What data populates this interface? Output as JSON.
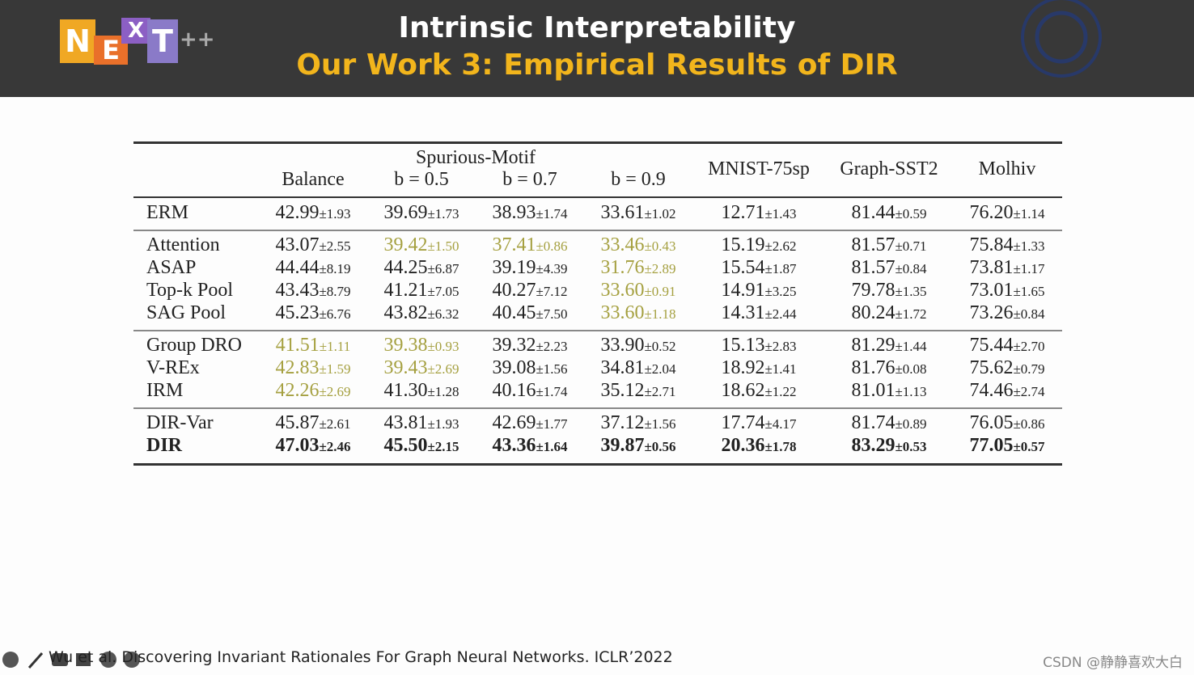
{
  "header": {
    "logo": [
      "N",
      "E",
      "X",
      "T",
      "++"
    ],
    "title": "Intrinsic Interpretability",
    "subtitle": "Our Work 3: Empirical Results of DIR"
  },
  "table": {
    "group_header": "Spurious-Motif",
    "columns": [
      "Balance",
      "b = 0.5",
      "b = 0.7",
      "b = 0.9",
      "MNIST-75sp",
      "Graph-SST2",
      "Molhiv"
    ],
    "sections": [
      [
        {
          "method": "ERM",
          "cells": [
            {
              "mean": "42.99",
              "std": "±1.93"
            },
            {
              "mean": "39.69",
              "std": "±1.73"
            },
            {
              "mean": "38.93",
              "std": "±1.74"
            },
            {
              "mean": "33.61",
              "std": "±1.02"
            },
            {
              "mean": "12.71",
              "std": "±1.43"
            },
            {
              "mean": "81.44",
              "std": "±0.59"
            },
            {
              "mean": "76.20",
              "std": "±1.14"
            }
          ]
        }
      ],
      [
        {
          "method": "Attention",
          "cells": [
            {
              "mean": "43.07",
              "std": "±2.55"
            },
            {
              "mean": "39.42",
              "std": "±1.50",
              "highlight": true
            },
            {
              "mean": "37.41",
              "std": "±0.86",
              "highlight": true
            },
            {
              "mean": "33.46",
              "std": "±0.43",
              "highlight": true
            },
            {
              "mean": "15.19",
              "std": "±2.62"
            },
            {
              "mean": "81.57",
              "std": "±0.71"
            },
            {
              "mean": "75.84",
              "std": "±1.33"
            }
          ]
        },
        {
          "method": "ASAP",
          "cells": [
            {
              "mean": "44.44",
              "std": "±8.19"
            },
            {
              "mean": "44.25",
              "std": "±6.87"
            },
            {
              "mean": "39.19",
              "std": "±4.39"
            },
            {
              "mean": "31.76",
              "std": "±2.89",
              "highlight": true
            },
            {
              "mean": "15.54",
              "std": "±1.87"
            },
            {
              "mean": "81.57",
              "std": "±0.84"
            },
            {
              "mean": "73.81",
              "std": "±1.17"
            }
          ]
        },
        {
          "method": "Top-k Pool",
          "cells": [
            {
              "mean": "43.43",
              "std": "±8.79"
            },
            {
              "mean": "41.21",
              "std": "±7.05"
            },
            {
              "mean": "40.27",
              "std": "±7.12"
            },
            {
              "mean": "33.60",
              "std": "±0.91",
              "highlight": true
            },
            {
              "mean": "14.91",
              "std": "±3.25"
            },
            {
              "mean": "79.78",
              "std": "±1.35"
            },
            {
              "mean": "73.01",
              "std": "±1.65"
            }
          ]
        },
        {
          "method": "SAG Pool",
          "cells": [
            {
              "mean": "45.23",
              "std": "±6.76"
            },
            {
              "mean": "43.82",
              "std": "±6.32"
            },
            {
              "mean": "40.45",
              "std": "±7.50"
            },
            {
              "mean": "33.60",
              "std": "±1.18",
              "highlight": true
            },
            {
              "mean": "14.31",
              "std": "±2.44"
            },
            {
              "mean": "80.24",
              "std": "±1.72"
            },
            {
              "mean": "73.26",
              "std": "±0.84"
            }
          ]
        }
      ],
      [
        {
          "method": "Group DRO",
          "cells": [
            {
              "mean": "41.51",
              "std": "±1.11",
              "highlight": true
            },
            {
              "mean": "39.38",
              "std": "±0.93",
              "highlight": true
            },
            {
              "mean": "39.32",
              "std": "±2.23"
            },
            {
              "mean": "33.90",
              "std": "±0.52"
            },
            {
              "mean": "15.13",
              "std": "±2.83"
            },
            {
              "mean": "81.29",
              "std": "±1.44"
            },
            {
              "mean": "75.44",
              "std": "±2.70"
            }
          ]
        },
        {
          "method": "V-REx",
          "cells": [
            {
              "mean": "42.83",
              "std": "±1.59",
              "highlight": true
            },
            {
              "mean": "39.43",
              "std": "±2.69",
              "highlight": true
            },
            {
              "mean": "39.08",
              "std": "±1.56"
            },
            {
              "mean": "34.81",
              "std": "±2.04"
            },
            {
              "mean": "18.92",
              "std": "±1.41"
            },
            {
              "mean": "81.76",
              "std": "±0.08"
            },
            {
              "mean": "75.62",
              "std": "±0.79"
            }
          ]
        },
        {
          "method": "IRM",
          "cells": [
            {
              "mean": "42.26",
              "std": "±2.69",
              "highlight": true
            },
            {
              "mean": "41.30",
              "std": "±1.28"
            },
            {
              "mean": "40.16",
              "std": "±1.74"
            },
            {
              "mean": "35.12",
              "std": "±2.71"
            },
            {
              "mean": "18.62",
              "std": "±1.22"
            },
            {
              "mean": "81.01",
              "std": "±1.13"
            },
            {
              "mean": "74.46",
              "std": "±2.74"
            }
          ]
        }
      ],
      [
        {
          "method": "DIR-Var",
          "cells": [
            {
              "mean": "45.87",
              "std": "±2.61"
            },
            {
              "mean": "43.81",
              "std": "±1.93"
            },
            {
              "mean": "42.69",
              "std": "±1.77"
            },
            {
              "mean": "37.12",
              "std": "±1.56"
            },
            {
              "mean": "17.74",
              "std": "±4.17"
            },
            {
              "mean": "81.74",
              "std": "±0.89"
            },
            {
              "mean": "76.05",
              "std": "±0.86"
            }
          ]
        },
        {
          "method": "DIR",
          "bold": true,
          "cells": [
            {
              "mean": "47.03",
              "std": "±2.46"
            },
            {
              "mean": "45.50",
              "std": "±2.15"
            },
            {
              "mean": "43.36",
              "std": "±1.64"
            },
            {
              "mean": "39.87",
              "std": "±0.56"
            },
            {
              "mean": "20.36",
              "std": "±1.78"
            },
            {
              "mean": "83.29",
              "std": "±0.53"
            },
            {
              "mean": "77.05",
              "std": "±0.57"
            }
          ]
        }
      ]
    ]
  },
  "footer": {
    "citation": "Wu et al. Discovering Invariant Rationales For Graph Neural Networks. ICLR’2022",
    "watermark": "CSDN @静静喜欢大白"
  }
}
